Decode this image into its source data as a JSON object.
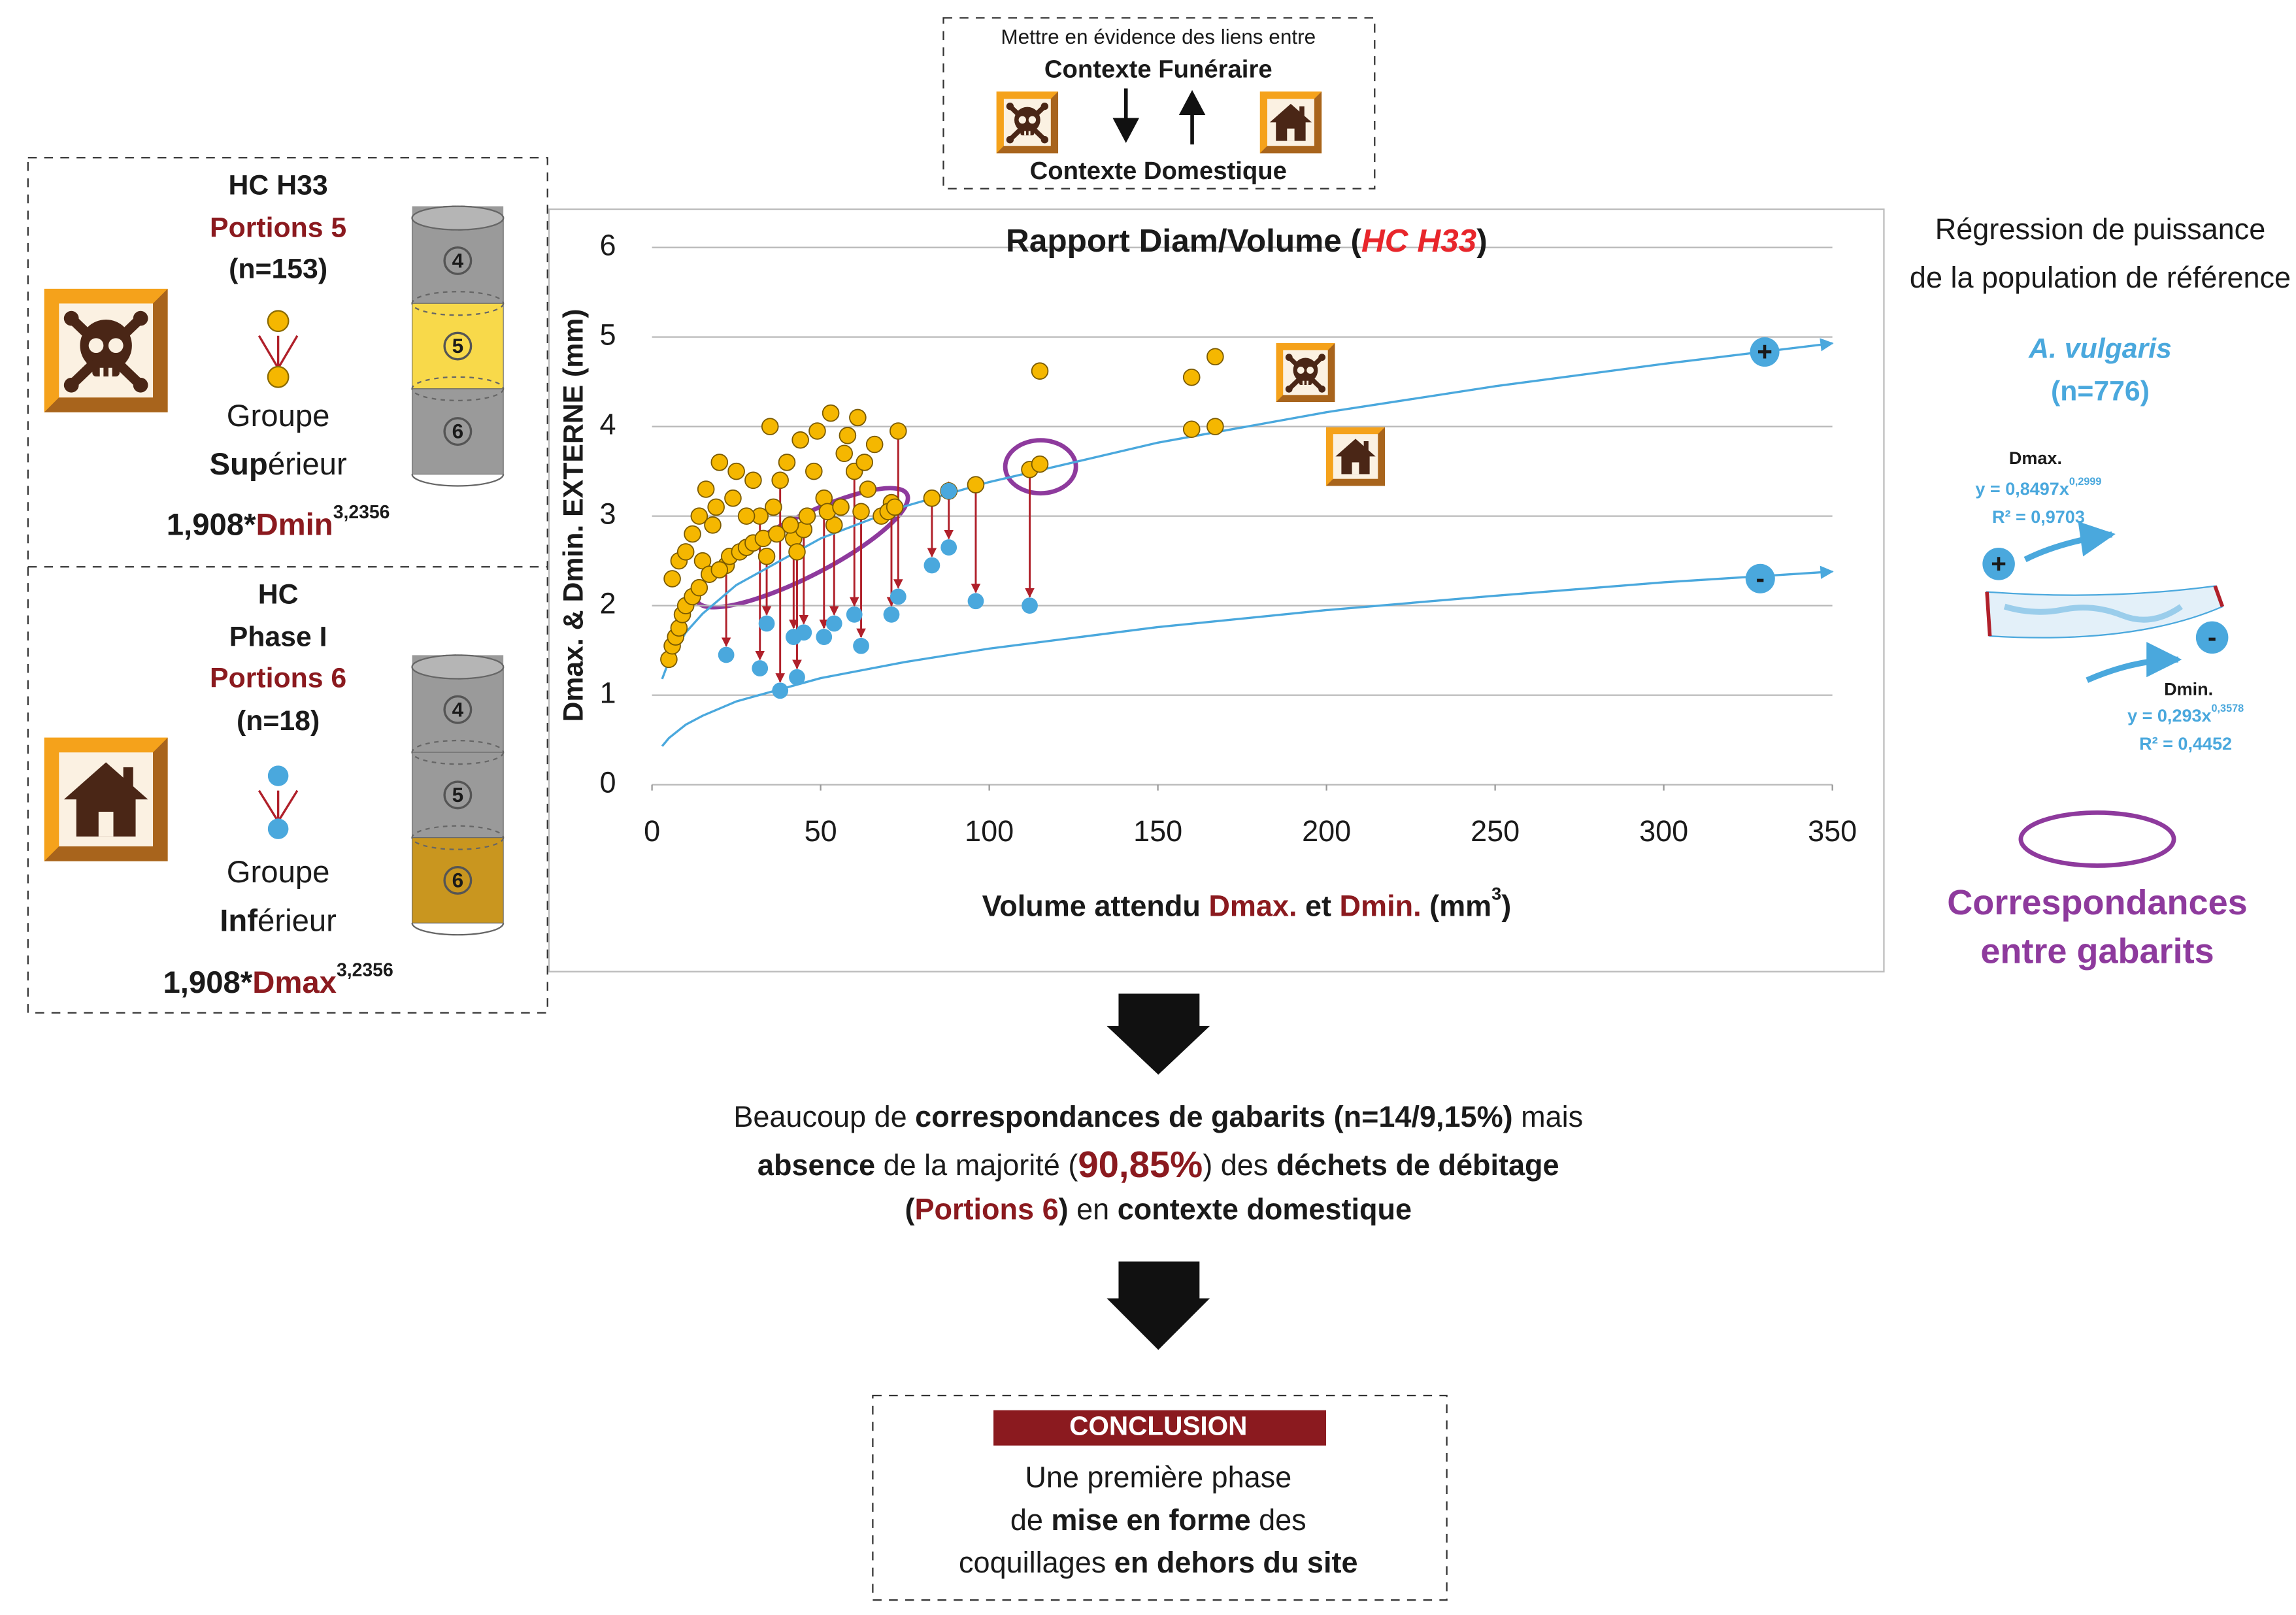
{
  "header": {
    "intro": [
      {
        "t": "Mettre en évidence des liens entre"
      }
    ],
    "funerary": [
      {
        "t": "Contexte Funéraire",
        "s": "b"
      }
    ],
    "domestic": [
      {
        "t": "Contexte Domestique",
        "s": "b"
      }
    ]
  },
  "upper_panel": {
    "site": [
      {
        "t": "HC H33",
        "s": "b"
      }
    ],
    "portions": [
      {
        "t": "Portions 5",
        "s": "br"
      }
    ],
    "count": [
      {
        "t": "(n=153)",
        "s": "b"
      }
    ],
    "group": [
      {
        "t": "Groupe"
      }
    ],
    "level": [
      {
        "t": "Sup",
        "s": "b"
      },
      {
        "t": "érieur"
      }
    ],
    "formula": [
      {
        "t": "1,908*",
        "s": "b"
      },
      {
        "t": "Dmin",
        "s": "br"
      },
      {
        "t": "3,2356",
        "s": "bu"
      }
    ],
    "cylinder": [
      "4",
      "5",
      "6"
    ]
  },
  "lower_panel": {
    "site": [
      {
        "t": "HC",
        "s": "b"
      }
    ],
    "phase": [
      {
        "t": "Phase I",
        "s": "b"
      }
    ],
    "portions": [
      {
        "t": "Portions 6",
        "s": "br"
      }
    ],
    "count": [
      {
        "t": "(n=18)",
        "s": "b"
      }
    ],
    "group": [
      {
        "t": "Groupe"
      }
    ],
    "level": [
      {
        "t": "Inf",
        "s": "b"
      },
      {
        "t": "érieur"
      }
    ],
    "formula": [
      {
        "t": "1,908*",
        "s": "b"
      },
      {
        "t": "Dmax",
        "s": "br"
      },
      {
        "t": "3,2356",
        "s": "bu"
      }
    ],
    "cylinder": [
      "4",
      "5",
      "6"
    ]
  },
  "chart_data": {
    "type": "scatter",
    "title": [
      {
        "t": "Rapport Diam/Volume (",
        "s": "b"
      },
      {
        "t": "HC H33",
        "s": "bRi"
      },
      {
        "t": ")",
        "s": "b"
      }
    ],
    "y_label": [
      {
        "t": "Dmax. & Dmin. EXTERNE (mm)",
        "s": "b"
      }
    ],
    "x_label": [
      {
        "t": "Volume attendu ",
        "s": "b"
      },
      {
        "t": "Dmax.",
        "s": "br"
      },
      {
        "t": " et ",
        "s": "b"
      },
      {
        "t": "Dmin.",
        "s": "br"
      },
      {
        "t": " (mm",
        "s": "b"
      },
      {
        "t": "3",
        "s": "bu"
      },
      {
        "t": ")",
        "s": "b"
      }
    ],
    "xlim": [
      0,
      350
    ],
    "ylim": [
      0,
      6
    ],
    "xticks": [
      0,
      50,
      100,
      150,
      200,
      250,
      300,
      350
    ],
    "yticks": [
      0,
      1,
      2,
      3,
      4,
      5,
      6
    ],
    "grid": true,
    "curve_markers": [
      "+",
      "-"
    ],
    "series": [
      {
        "type": "scatter",
        "color": "#f5b700",
        "x": [
          22,
          32,
          34,
          38,
          42,
          43,
          45,
          51,
          54,
          60,
          62,
          71,
          73,
          83,
          88,
          96,
          112,
          88,
          5,
          6,
          7,
          8,
          9,
          10,
          6,
          8,
          10,
          12,
          12,
          14,
          14,
          15,
          16,
          17,
          18,
          19,
          20,
          20,
          23,
          24,
          25,
          26,
          28,
          28,
          30,
          30,
          33,
          35,
          36,
          37,
          40,
          41,
          44,
          46,
          48,
          49,
          52,
          53,
          56,
          57,
          58,
          61,
          63,
          64,
          66,
          68,
          70,
          72,
          115,
          115,
          160,
          160,
          167,
          167
        ],
        "values": [
          2.45,
          3.0,
          2.55,
          3.4,
          2.75,
          2.6,
          2.85,
          3.2,
          2.9,
          3.5,
          3.05,
          3.15,
          3.95,
          3.2,
          3.28,
          3.35,
          3.52,
          3.28,
          1.4,
          1.55,
          1.65,
          1.75,
          1.9,
          2.0,
          2.3,
          2.5,
          2.6,
          2.1,
          2.8,
          2.2,
          3.0,
          2.5,
          3.3,
          2.35,
          2.9,
          3.1,
          2.4,
          3.6,
          2.55,
          3.2,
          3.5,
          2.6,
          3.0,
          2.65,
          3.4,
          2.7,
          2.75,
          4.0,
          3.1,
          2.8,
          3.6,
          2.9,
          3.85,
          3.0,
          3.5,
          3.95,
          3.05,
          4.15,
          3.1,
          3.7,
          3.9,
          4.1,
          3.6,
          3.3,
          3.8,
          3.0,
          3.05,
          3.1,
          4.62,
          3.58,
          4.55,
          3.97,
          4.78,
          4.0
        ]
      },
      {
        "type": "scatter",
        "color": "#4aa8dd",
        "x": [
          22,
          32,
          34,
          38,
          42,
          43,
          45,
          51,
          54,
          60,
          62,
          71,
          73,
          83,
          88,
          96,
          112,
          88
        ],
        "values": [
          1.45,
          1.3,
          1.8,
          1.05,
          1.65,
          1.2,
          1.7,
          1.65,
          1.8,
          1.9,
          1.55,
          1.9,
          2.1,
          2.45,
          2.65,
          2.05,
          2.0,
          3.28
        ]
      },
      {
        "type": "line",
        "color": "#4aa8dd",
        "x": [
          3,
          5,
          10,
          15,
          25,
          50,
          75,
          100,
          150,
          200,
          250,
          300,
          350
        ],
        "values": [
          1.18,
          1.38,
          1.7,
          1.91,
          2.23,
          2.75,
          3.11,
          3.38,
          3.82,
          4.16,
          4.45,
          4.7,
          4.93
        ]
      },
      {
        "type": "line",
        "color": "#4aa8dd",
        "x": [
          3,
          5,
          10,
          15,
          25,
          50,
          75,
          100,
          150,
          200,
          250,
          300,
          350
        ],
        "values": [
          0.43,
          0.52,
          0.67,
          0.77,
          0.93,
          1.19,
          1.37,
          1.52,
          1.76,
          1.95,
          2.11,
          2.26,
          2.38
        ]
      }
    ]
  },
  "reference": {
    "line1": [
      {
        "t": "Régression de puissance"
      }
    ],
    "line2": [
      {
        "t": "de la population de référence"
      }
    ],
    "species": [
      {
        "t": "A. vulgaris",
        "s": "bci"
      }
    ],
    "count": [
      {
        "t": "(n=776)",
        "s": "bc"
      }
    ],
    "dmax_label": [
      {
        "t": "Dmax.",
        "s": "b"
      }
    ],
    "dmax_eq": [
      {
        "t": "y = 0,8497x",
        "s": "bc"
      },
      {
        "t": "0,2999",
        "s": "bcu"
      }
    ],
    "dmax_r2": [
      {
        "t": "R² = 0,9703",
        "s": "bc"
      }
    ],
    "dmin_label": [
      {
        "t": "Dmin.",
        "s": "b"
      }
    ],
    "dmin_eq": [
      {
        "t": "y = 0,293x",
        "s": "bc"
      },
      {
        "t": "0,3578",
        "s": "bcu"
      }
    ],
    "dmin_r2": [
      {
        "t": "R² = 0,4452",
        "s": "bc"
      }
    ],
    "markers": [
      "+",
      "-"
    ],
    "legend1": [
      {
        "t": "Correspondances",
        "s": "bp"
      }
    ],
    "legend2": [
      {
        "t": "entre gabarits",
        "s": "bp"
      }
    ]
  },
  "findings": {
    "line1": [
      {
        "t": "Beaucoup de "
      },
      {
        "t": "correspondances de gabarits (n=14/9,15%)",
        "s": "b"
      },
      {
        "t": " mais"
      }
    ],
    "line2": [
      {
        "t": "absence",
        "s": "b"
      },
      {
        "t": " de la majorité ("
      },
      {
        "t": "90,85%",
        "s": "brL"
      },
      {
        "t": ") des "
      },
      {
        "t": "déchets de débitage",
        "s": "b"
      }
    ],
    "line3": [
      {
        "t": "(",
        "s": "b"
      },
      {
        "t": "Portions 6",
        "s": "br"
      },
      {
        "t": ")",
        "s": "b"
      },
      {
        "t": " en "
      },
      {
        "t": "contexte domestique",
        "s": "b"
      }
    ]
  },
  "conclusion": {
    "title": [
      {
        "t": "CONCLUSION",
        "s": "bw"
      }
    ],
    "line1": [
      {
        "t": "Une première phase"
      }
    ],
    "line2": [
      {
        "t": "de "
      },
      {
        "t": "mise en forme",
        "s": "b"
      },
      {
        "t": " des"
      }
    ],
    "line3": [
      {
        "t": "coquillages "
      },
      {
        "t": "en dehors du site",
        "s": "b"
      }
    ]
  }
}
